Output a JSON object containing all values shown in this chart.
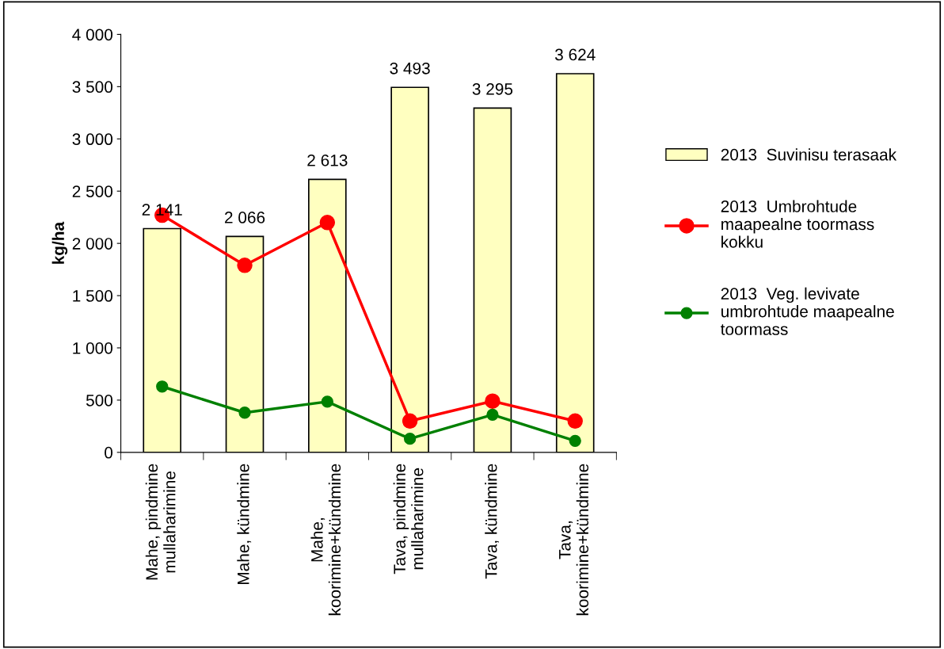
{
  "chart_data": {
    "type": "bar",
    "ylabel": "kg/ha",
    "categories": [
      "Mahe, pindmine\nmullaharimine",
      "Mahe, kündmine",
      "Mahe,\nkoorimine+kündmine",
      "Tava, pindmine\nmullaharimine",
      "Tava, kündmine",
      "Tava,\nkoorimine+kündmine"
    ],
    "series": [
      {
        "name": "2013  Suvinisu terasaak",
        "color": "#ffffc0",
        "values": [
          2141,
          2066,
          2613,
          3493,
          3295,
          3624
        ],
        "value_labels": [
          "2 141",
          "2 066",
          "2 613",
          "3 493",
          "3 295",
          "3 624"
        ]
      },
      {
        "name": "2013  Umbrohtude\nmaapealne toormass\nkokku",
        "type": "line",
        "color": "#ff0000",
        "marker": "circle",
        "values": [
          2270,
          1790,
          2200,
          300,
          490,
          300
        ]
      },
      {
        "name": "2013  Veg. levivate\numbrohtude maapealne\ntoormass",
        "type": "line",
        "color": "#008000",
        "marker": "circle",
        "values": [
          630,
          380,
          485,
          130,
          360,
          110
        ]
      }
    ],
    "ylim": [
      0,
      4000
    ],
    "yticks": [
      0,
      500,
      {
        "value": 1000,
        "label": "1 000"
      },
      {
        "value": 1500,
        "label": "1 500"
      },
      {
        "value": 2000,
        "label": "2 000"
      },
      {
        "value": 2500,
        "label": "2 500"
      },
      {
        "value": 3000,
        "label": "3 000"
      },
      {
        "value": 3500,
        "label": "3 500"
      },
      {
        "value": 4000,
        "label": "4 000"
      }
    ],
    "grid": false,
    "legend": "right"
  }
}
